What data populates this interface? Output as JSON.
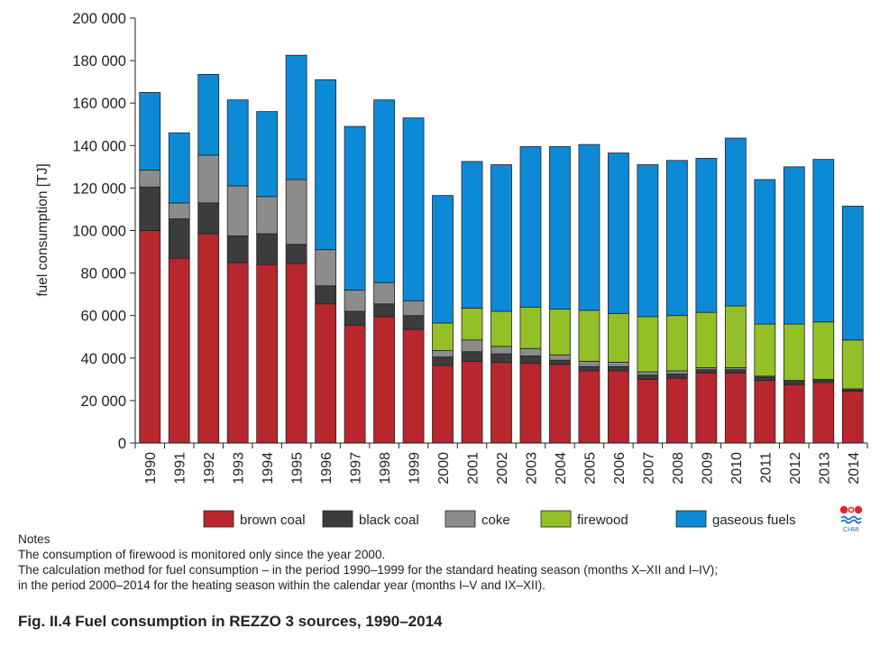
{
  "chart_data": {
    "type": "bar",
    "stacked": true,
    "categories": [
      "1990",
      "1991",
      "1992",
      "1993",
      "1994",
      "1995",
      "1996",
      "1997",
      "1998",
      "1999",
      "2000",
      "2001",
      "2002",
      "2003",
      "2004",
      "2005",
      "2006",
      "2007",
      "2008",
      "2009",
      "2010",
      "2011",
      "2012",
      "2013",
      "2014"
    ],
    "ylabel": "fuel consumption [TJ]",
    "xlabel": "",
    "ylim": [
      0,
      200000
    ],
    "yticks": [
      0,
      20000,
      40000,
      60000,
      80000,
      100000,
      120000,
      140000,
      160000,
      180000,
      200000
    ],
    "ytick_labels": [
      "0",
      "20 000",
      "40 000",
      "60 000",
      "80 000",
      "100 000",
      "120 000",
      "140 000",
      "160 000",
      "180 000",
      "200 000"
    ],
    "grid": false,
    "legend_position": "bottom",
    "series": [
      {
        "name": "brown coal",
        "color": "#b8262e",
        "values": [
          100000,
          87000,
          98500,
          85000,
          84000,
          84500,
          65500,
          55500,
          59500,
          53500,
          36500,
          38500,
          38000,
          37500,
          37000,
          34000,
          34000,
          30000,
          30500,
          33000,
          33000,
          29500,
          27500,
          28500,
          24500
        ]
      },
      {
        "name": "black coal",
        "color": "#3c3c3c",
        "values": [
          20500,
          18500,
          14500,
          12500,
          14500,
          9000,
          8500,
          6500,
          6000,
          6500,
          4000,
          4500,
          4000,
          3500,
          2000,
          2000,
          2000,
          2000,
          2000,
          1500,
          1500,
          1500,
          1500,
          1000,
          500
        ]
      },
      {
        "name": "coke",
        "color": "#8c8c8c",
        "values": [
          8000,
          7500,
          22500,
          23500,
          17500,
          30500,
          17000,
          10000,
          10000,
          7000,
          3000,
          5500,
          3500,
          3500,
          2500,
          2500,
          2000,
          1500,
          1500,
          1000,
          1000,
          500,
          500,
          500,
          500
        ]
      },
      {
        "name": "firewood",
        "color": "#93c026",
        "values": [
          0,
          0,
          0,
          0,
          0,
          0,
          0,
          0,
          0,
          0,
          13000,
          15000,
          16500,
          19500,
          21500,
          24000,
          23000,
          26000,
          26000,
          26000,
          29000,
          24500,
          26500,
          27000,
          23000
        ]
      },
      {
        "name": "gaseous fuels",
        "color": "#0d8ad6",
        "values": [
          36500,
          33000,
          38000,
          40500,
          40000,
          58500,
          80000,
          77000,
          86000,
          86000,
          60000,
          69000,
          69000,
          75500,
          76500,
          78000,
          75500,
          71500,
          73000,
          72500,
          79000,
          68000,
          74000,
          76500,
          63000
        ]
      }
    ]
  },
  "logo_text": "CHMI",
  "notes": {
    "heading": "Notes",
    "lines": [
      "The consumption of firewood is monitored only since the year 2000.",
      "The calculation method for fuel consumption – in the period 1990–1999 for the standard heating season (months X–XII and I–IV);",
      "in the period 2000–2014 for the heating season within the calendar year (months I–V and IX–XII)."
    ]
  },
  "figure_title": "Fig. II.4  Fuel consumption in REZZO 3 sources, 1990–2014"
}
